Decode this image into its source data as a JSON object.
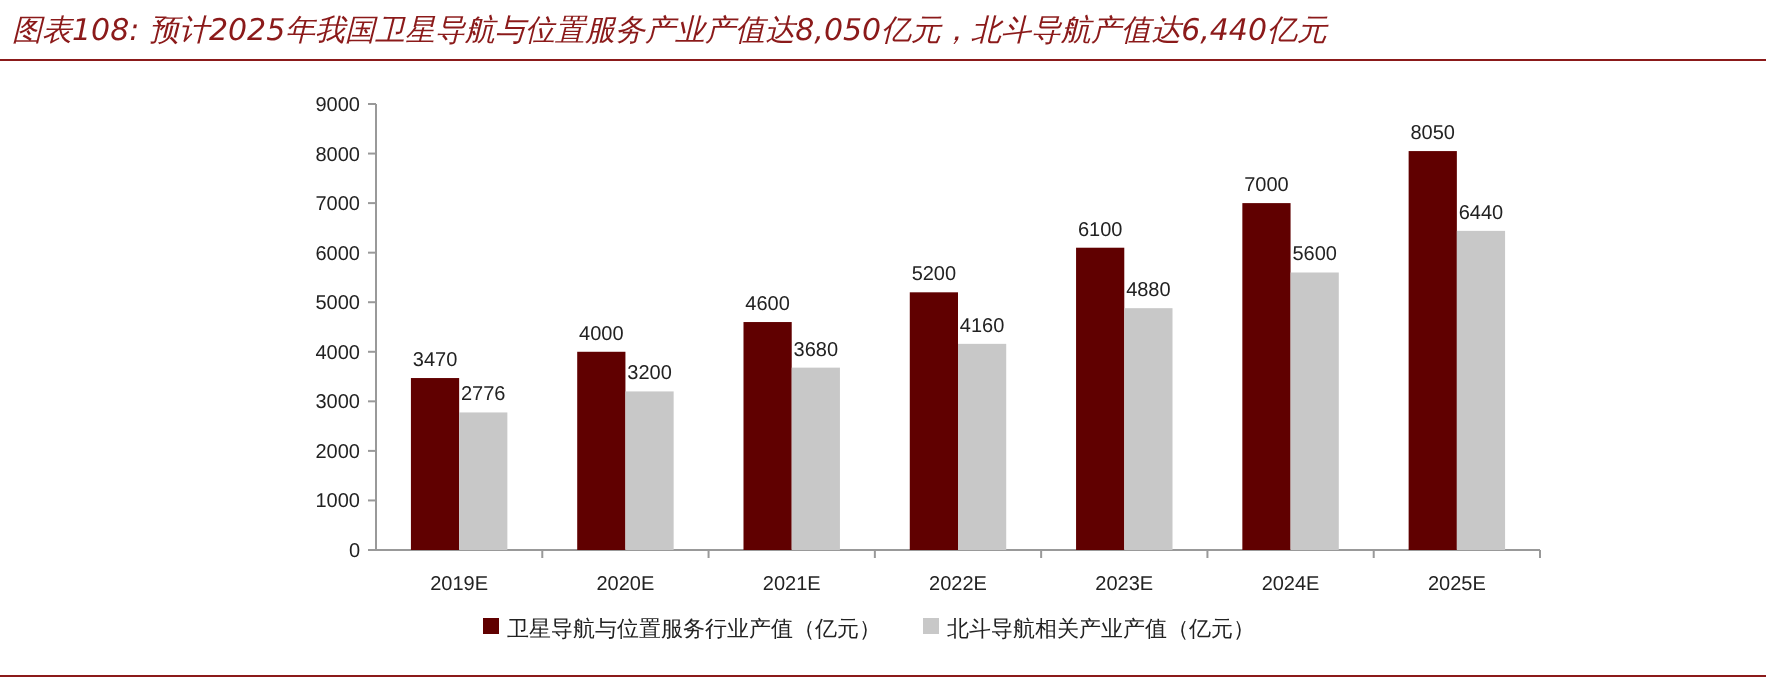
{
  "chart_data": {
    "type": "bar",
    "title": "图表108: 预计2025年我国卫星导航与位置服务产业产值达8,050亿元，北斗导航产值达6,440亿元",
    "categories": [
      "2019E",
      "2020E",
      "2021E",
      "2022E",
      "2023E",
      "2024E",
      "2025E"
    ],
    "series": [
      {
        "name": "卫星导航与位置服务行业产值（亿元）",
        "color": "#600000",
        "values": [
          3470,
          4000,
          4600,
          5200,
          6100,
          7000,
          8050
        ]
      },
      {
        "name": "北斗导航相关产业产值（亿元）",
        "color": "#c8c8c8",
        "values": [
          2776,
          3200,
          3680,
          4160,
          4880,
          5600,
          6440
        ]
      }
    ],
    "ylim": [
      0,
      9000
    ],
    "yticks": [
      0,
      1000,
      2000,
      3000,
      4000,
      5000,
      6000,
      7000,
      8000,
      9000
    ],
    "grid": false,
    "legend": "bottom",
    "data_labels": true
  }
}
